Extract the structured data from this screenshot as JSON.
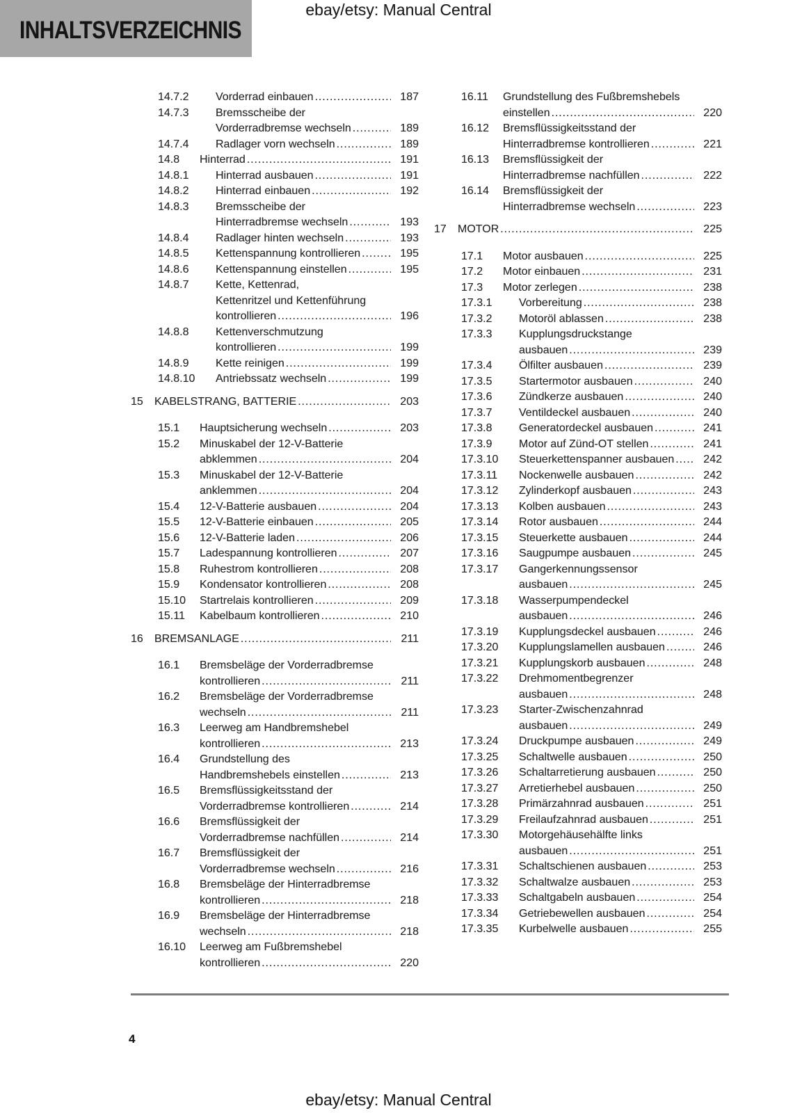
{
  "header": {
    "doc_title": "INHALTSVERZEICHNIS",
    "center_text": "ebay/etsy: Manual Central"
  },
  "footer": {
    "page_number": "4",
    "center_text": "ebay/etsy: Manual Central"
  },
  "colors": {
    "header_box_bg": "#a7a7a7",
    "rule": "#7c7c7c",
    "text": "#262626"
  },
  "toc": {
    "left_column": [
      {
        "num": "14.7.2",
        "level": 3,
        "lines": [
          "Vorderrad einbauen"
        ],
        "page": "187"
      },
      {
        "num": "14.7.3",
        "level": 3,
        "lines": [
          "Bremsscheibe der",
          "Vorderradbremse wechseln"
        ],
        "page": "189"
      },
      {
        "num": "14.7.4",
        "level": 3,
        "lines": [
          "Radlager vorn wechseln"
        ],
        "page": "189"
      },
      {
        "num": "14.8",
        "level": 2,
        "lines": [
          "Hinterrad"
        ],
        "page": "191"
      },
      {
        "num": "14.8.1",
        "level": 3,
        "lines": [
          "Hinterrad ausbauen"
        ],
        "page": "191"
      },
      {
        "num": "14.8.2",
        "level": 3,
        "lines": [
          "Hinterrad einbauen"
        ],
        "page": "192"
      },
      {
        "num": "14.8.3",
        "level": 3,
        "lines": [
          "Bremsscheibe der",
          "Hinterradbremse wechseln"
        ],
        "page": "193"
      },
      {
        "num": "14.8.4",
        "level": 3,
        "lines": [
          "Radlager hinten wechseln"
        ],
        "page": "193"
      },
      {
        "num": "14.8.5",
        "level": 3,
        "lines": [
          "Kettenspannung kontrollieren"
        ],
        "page": "195"
      },
      {
        "num": "14.8.6",
        "level": 3,
        "lines": [
          "Kettenspannung einstellen"
        ],
        "page": "195"
      },
      {
        "num": "14.8.7",
        "level": 3,
        "lines": [
          "Kette, Kettenrad,",
          "Kettenritzel und Kettenführung",
          "kontrollieren"
        ],
        "page": "196"
      },
      {
        "num": "14.8.8",
        "level": 3,
        "lines": [
          "Kettenverschmutzung",
          "kontrollieren"
        ],
        "page": "199"
      },
      {
        "num": "14.8.9",
        "level": 3,
        "lines": [
          "Kette reinigen"
        ],
        "page": "199"
      },
      {
        "num": "14.8.10",
        "level": 3,
        "lines": [
          "Antriebssatz wechseln"
        ],
        "page": "199"
      },
      {
        "num": "15",
        "level": 1,
        "lines": [
          "KABELSTRANG, BATTERIE"
        ],
        "page": "203"
      },
      {
        "num": "15.1",
        "level": 2,
        "lines": [
          "Hauptsicherung wechseln"
        ],
        "page": "203"
      },
      {
        "num": "15.2",
        "level": 2,
        "lines": [
          "Minuskabel der 12-V-Batterie",
          "abklemmen"
        ],
        "page": "204"
      },
      {
        "num": "15.3",
        "level": 2,
        "lines": [
          "Minuskabel der 12-V-Batterie",
          "anklemmen"
        ],
        "page": "204"
      },
      {
        "num": "15.4",
        "level": 2,
        "lines": [
          "12-V-Batterie ausbauen"
        ],
        "page": "204"
      },
      {
        "num": "15.5",
        "level": 2,
        "lines": [
          "12-V-Batterie einbauen"
        ],
        "page": "205"
      },
      {
        "num": "15.6",
        "level": 2,
        "lines": [
          "12-V-Batterie laden"
        ],
        "page": "206"
      },
      {
        "num": "15.7",
        "level": 2,
        "lines": [
          "Ladespannung kontrollieren"
        ],
        "page": "207"
      },
      {
        "num": "15.8",
        "level": 2,
        "lines": [
          "Ruhestrom kontrollieren"
        ],
        "page": "208"
      },
      {
        "num": "15.9",
        "level": 2,
        "lines": [
          "Kondensator kontrollieren"
        ],
        "page": "208"
      },
      {
        "num": "15.10",
        "level": 2,
        "lines": [
          "Startrelais kontrollieren"
        ],
        "page": "209"
      },
      {
        "num": "15.11",
        "level": 2,
        "lines": [
          "Kabelbaum kontrollieren"
        ],
        "page": "210"
      },
      {
        "num": "16",
        "level": 1,
        "lines": [
          "BREMSANLAGE"
        ],
        "page": "211"
      },
      {
        "num": "16.1",
        "level": 2,
        "lines": [
          "Bremsbeläge der Vorderradbremse",
          "kontrollieren"
        ],
        "page": "211"
      },
      {
        "num": "16.2",
        "level": 2,
        "lines": [
          "Bremsbeläge der Vorderradbremse",
          "wechseln"
        ],
        "page": "211"
      },
      {
        "num": "16.3",
        "level": 2,
        "lines": [
          "Leerweg am Handbremshebel",
          "kontrollieren"
        ],
        "page": "213"
      },
      {
        "num": "16.4",
        "level": 2,
        "lines": [
          "Grundstellung des",
          "Handbremshebels einstellen"
        ],
        "page": "213"
      },
      {
        "num": "16.5",
        "level": 2,
        "lines": [
          "Bremsflüssigkeitsstand der",
          "Vorderradbremse kontrollieren"
        ],
        "page": "214"
      },
      {
        "num": "16.6",
        "level": 2,
        "lines": [
          "Bremsflüssigkeit der",
          "Vorderradbremse nachfüllen"
        ],
        "page": "214"
      },
      {
        "num": "16.7",
        "level": 2,
        "lines": [
          "Bremsflüssigkeit der",
          "Vorderradbremse wechseln"
        ],
        "page": "216"
      },
      {
        "num": "16.8",
        "level": 2,
        "lines": [
          "Bremsbeläge der Hinterradbremse",
          "kontrollieren"
        ],
        "page": "218"
      },
      {
        "num": "16.9",
        "level": 2,
        "lines": [
          "Bremsbeläge der Hinterradbremse",
          "wechseln"
        ],
        "page": "218"
      },
      {
        "num": "16.10",
        "level": 2,
        "lines": [
          "Leerweg am Fußbremshebel",
          "kontrollieren"
        ],
        "page": "220"
      }
    ],
    "right_column": [
      {
        "num": "16.11",
        "level": 2,
        "lines": [
          "Grundstellung des Fußbremshebels",
          "einstellen"
        ],
        "page": "220"
      },
      {
        "num": "16.12",
        "level": 2,
        "lines": [
          "Bremsflüssigkeitsstand der",
          "Hinterradbremse kontrollieren"
        ],
        "page": "221"
      },
      {
        "num": "16.13",
        "level": 2,
        "lines": [
          "Bremsflüssigkeit der",
          "Hinterradbremse nachfüllen"
        ],
        "page": "222"
      },
      {
        "num": "16.14",
        "level": 2,
        "lines": [
          "Bremsflüssigkeit der",
          "Hinterradbremse wechseln"
        ],
        "page": "223"
      },
      {
        "num": "17",
        "level": 1,
        "lines": [
          "MOTOR"
        ],
        "page": "225"
      },
      {
        "num": "17.1",
        "level": 2,
        "lines": [
          "Motor ausbauen"
        ],
        "page": "225"
      },
      {
        "num": "17.2",
        "level": 2,
        "lines": [
          "Motor einbauen"
        ],
        "page": "231"
      },
      {
        "num": "17.3",
        "level": 2,
        "lines": [
          "Motor zerlegen"
        ],
        "page": "238"
      },
      {
        "num": "17.3.1",
        "level": 3,
        "lines": [
          "Vorbereitung"
        ],
        "page": "238"
      },
      {
        "num": "17.3.2",
        "level": 3,
        "lines": [
          "Motoröl ablassen"
        ],
        "page": "238"
      },
      {
        "num": "17.3.3",
        "level": 3,
        "lines": [
          "Kupplungsdruckstange",
          "ausbauen"
        ],
        "page": "239"
      },
      {
        "num": "17.3.4",
        "level": 3,
        "lines": [
          "Ölfilter ausbauen"
        ],
        "page": "239"
      },
      {
        "num": "17.3.5",
        "level": 3,
        "lines": [
          "Startermotor ausbauen"
        ],
        "page": "240"
      },
      {
        "num": "17.3.6",
        "level": 3,
        "lines": [
          "Zündkerze ausbauen"
        ],
        "page": "240"
      },
      {
        "num": "17.3.7",
        "level": 3,
        "lines": [
          "Ventildeckel ausbauen"
        ],
        "page": "240"
      },
      {
        "num": "17.3.8",
        "level": 3,
        "lines": [
          "Generatordeckel ausbauen"
        ],
        "page": "241"
      },
      {
        "num": "17.3.9",
        "level": 3,
        "lines": [
          "Motor auf Zünd-OT stellen"
        ],
        "page": "241"
      },
      {
        "num": "17.3.10",
        "level": 3,
        "lines": [
          "Steuerkettenspanner ausbauen"
        ],
        "page": "242"
      },
      {
        "num": "17.3.11",
        "level": 3,
        "lines": [
          "Nockenwelle ausbauen"
        ],
        "page": "242"
      },
      {
        "num": "17.3.12",
        "level": 3,
        "lines": [
          "Zylinderkopf ausbauen"
        ],
        "page": "243"
      },
      {
        "num": "17.3.13",
        "level": 3,
        "lines": [
          "Kolben ausbauen"
        ],
        "page": "243"
      },
      {
        "num": "17.3.14",
        "level": 3,
        "lines": [
          "Rotor ausbauen"
        ],
        "page": "244"
      },
      {
        "num": "17.3.15",
        "level": 3,
        "lines": [
          "Steuerkette ausbauen"
        ],
        "page": "244"
      },
      {
        "num": "17.3.16",
        "level": 3,
        "lines": [
          "Saugpumpe ausbauen"
        ],
        "page": "245"
      },
      {
        "num": "17.3.17",
        "level": 3,
        "lines": [
          "Gangerkennungssensor",
          "ausbauen"
        ],
        "page": "245"
      },
      {
        "num": "17.3.18",
        "level": 3,
        "lines": [
          "Wasserpumpendeckel",
          "ausbauen"
        ],
        "page": "246"
      },
      {
        "num": "17.3.19",
        "level": 3,
        "lines": [
          "Kupplungsdeckel ausbauen"
        ],
        "page": "246"
      },
      {
        "num": "17.3.20",
        "level": 3,
        "lines": [
          "Kupplungslamellen ausbauen"
        ],
        "page": "246"
      },
      {
        "num": "17.3.21",
        "level": 3,
        "lines": [
          "Kupplungskorb ausbauen"
        ],
        "page": "248"
      },
      {
        "num": "17.3.22",
        "level": 3,
        "lines": [
          "Drehmomentbegrenzer",
          "ausbauen"
        ],
        "page": "248"
      },
      {
        "num": "17.3.23",
        "level": 3,
        "lines": [
          "Starter-Zwischenzahnrad",
          "ausbauen"
        ],
        "page": "249"
      },
      {
        "num": "17.3.24",
        "level": 3,
        "lines": [
          "Druckpumpe ausbauen"
        ],
        "page": "249"
      },
      {
        "num": "17.3.25",
        "level": 3,
        "lines": [
          "Schaltwelle ausbauen"
        ],
        "page": "250"
      },
      {
        "num": "17.3.26",
        "level": 3,
        "lines": [
          "Schaltarretierung ausbauen"
        ],
        "page": "250"
      },
      {
        "num": "17.3.27",
        "level": 3,
        "lines": [
          "Arretierhebel ausbauen"
        ],
        "page": "250"
      },
      {
        "num": "17.3.28",
        "level": 3,
        "lines": [
          "Primärzahnrad ausbauen"
        ],
        "page": "251"
      },
      {
        "num": "17.3.29",
        "level": 3,
        "lines": [
          "Freilaufzahnrad ausbauen"
        ],
        "page": "251"
      },
      {
        "num": "17.3.30",
        "level": 3,
        "lines": [
          "Motorgehäusehälfte links",
          "ausbauen"
        ],
        "page": "251"
      },
      {
        "num": "17.3.31",
        "level": 3,
        "lines": [
          "Schaltschienen ausbauen"
        ],
        "page": "253"
      },
      {
        "num": "17.3.32",
        "level": 3,
        "lines": [
          "Schaltwalze ausbauen"
        ],
        "page": "253"
      },
      {
        "num": "17.3.33",
        "level": 3,
        "lines": [
          "Schaltgabeln ausbauen"
        ],
        "page": "254"
      },
      {
        "num": "17.3.34",
        "level": 3,
        "lines": [
          "Getriebewellen ausbauen"
        ],
        "page": "254"
      },
      {
        "num": "17.3.35",
        "level": 3,
        "lines": [
          "Kurbelwelle ausbauen"
        ],
        "page": "255"
      }
    ]
  }
}
